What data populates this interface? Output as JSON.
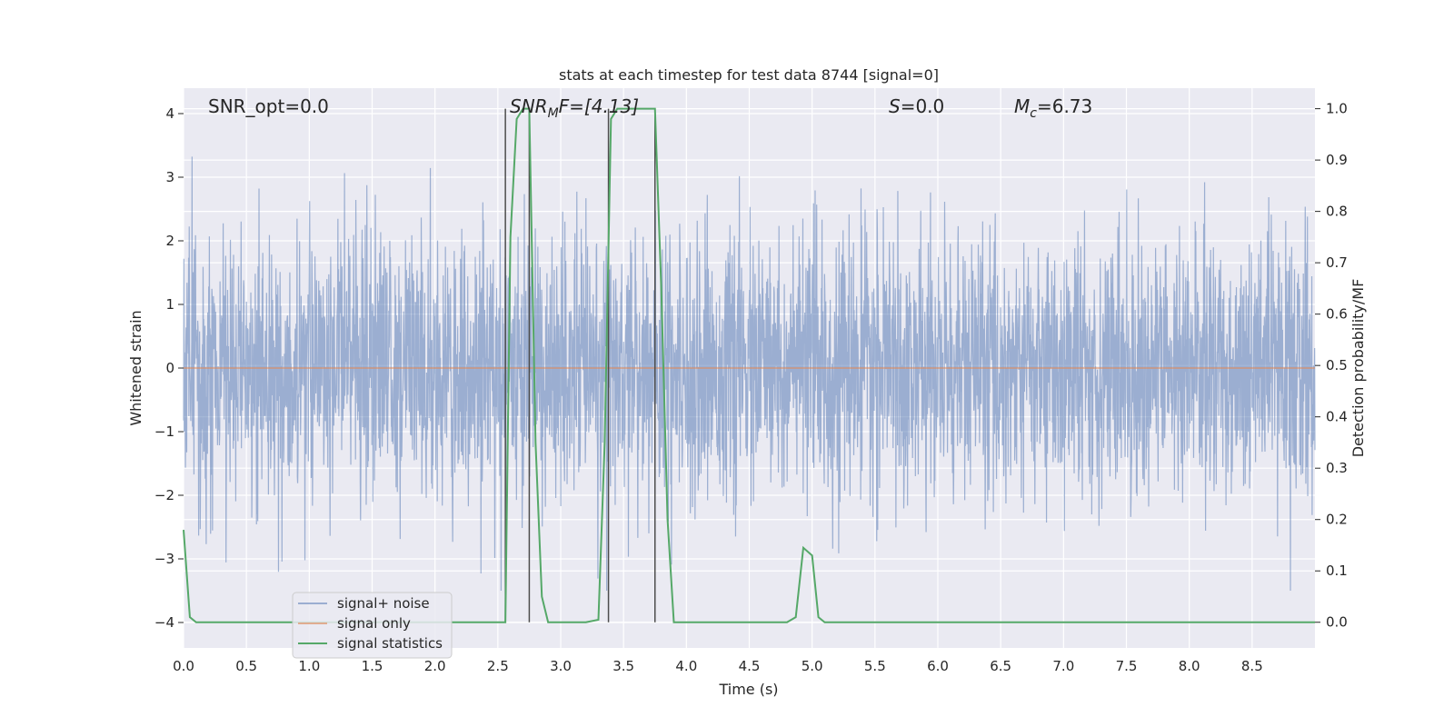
{
  "chart_data": {
    "type": "line",
    "title": "stats at each timestep for test data 8744 [signal=0]",
    "xlabel": "Time (s)",
    "ylabel": "Whitened strain",
    "y2label": "Detection probability/MF",
    "xlim": [
      0.0,
      9.0
    ],
    "ylim": [
      -4.4,
      4.4
    ],
    "y2lim": [
      -0.05,
      1.04
    ],
    "xticks": [
      "0.0",
      "0.5",
      "1.0",
      "1.5",
      "2.0",
      "2.5",
      "3.0",
      "3.5",
      "4.0",
      "4.5",
      "5.0",
      "5.5",
      "6.0",
      "6.5",
      "7.0",
      "7.5",
      "8.0",
      "8.5"
    ],
    "yticks": [
      "4",
      "3",
      "2",
      "1",
      "0",
      "−1",
      "−2",
      "−3",
      "−4"
    ],
    "y2ticks": [
      "1.0",
      "0.9",
      "0.8",
      "0.7",
      "0.6",
      "0.5",
      "0.4",
      "0.3",
      "0.2",
      "0.1",
      "0.0"
    ],
    "grid": true,
    "annotations": {
      "snr_opt": "SNR_opt=0.0",
      "snr_mf_base": "SNR",
      "snr_mf_sub": "M",
      "snr_mf_rest": "F=[4.13]",
      "s_base": "S",
      "s_rest": "=0.0",
      "mc_base": "M",
      "mc_sub": "c",
      "mc_rest": "=6.73"
    },
    "series": [
      {
        "name": "signal+ noise",
        "color": "#4c72b0",
        "description": "whitened strain noise, approx. amplitude ±2.5 with peaks to ±3.5"
      },
      {
        "name": "signal only",
        "color": "#dd8452",
        "x": [
          0.0,
          9.0
        ],
        "y": [
          0.0,
          0.0
        ]
      },
      {
        "name": "signal statistics",
        "color": "#55a868",
        "axis": "right",
        "x": [
          0.0,
          0.05,
          0.1,
          0.15,
          1.0,
          2.0,
          2.5,
          2.56,
          2.6,
          2.65,
          2.7,
          2.75,
          2.8,
          2.85,
          2.9,
          3.0,
          3.2,
          3.3,
          3.35,
          3.4,
          3.45,
          3.5,
          3.6,
          3.7,
          3.75,
          3.8,
          3.85,
          3.9,
          4.0,
          4.5,
          4.8,
          4.87,
          4.93,
          5.0,
          5.05,
          5.1,
          5.2,
          6.0,
          7.0,
          8.0,
          9.0
        ],
        "y": [
          0.18,
          0.01,
          0.0,
          0.0,
          0.0,
          0.0,
          0.0,
          0.0,
          0.75,
          0.98,
          1.0,
          1.0,
          0.35,
          0.05,
          0.0,
          0.0,
          0.0,
          0.005,
          0.35,
          0.98,
          1.0,
          1.0,
          1.0,
          1.0,
          1.0,
          0.65,
          0.2,
          0.0,
          0.0,
          0.0,
          0.0,
          0.01,
          0.145,
          0.13,
          0.01,
          0.0,
          0.0,
          0.0,
          0.0,
          0.0,
          0.0
        ]
      }
    ],
    "vlines": [
      {
        "x": 2.56,
        "y2_from": 0.0,
        "y2_to": 1.0,
        "color": "#4d4d4d"
      },
      {
        "x": 2.75,
        "y2_from": 0.0,
        "y2_to": 1.0,
        "color": "#4d4d4d"
      },
      {
        "x": 3.38,
        "y2_from": 0.0,
        "y2_to": 1.0,
        "color": "#4d4d4d"
      },
      {
        "x": 3.75,
        "y2_from": 0.0,
        "y2_to": 1.0,
        "color": "#4d4d4d"
      }
    ],
    "legend": {
      "placement": "lower-left",
      "entries": [
        "signal+ noise",
        "signal only",
        "signal statistics"
      ]
    }
  }
}
